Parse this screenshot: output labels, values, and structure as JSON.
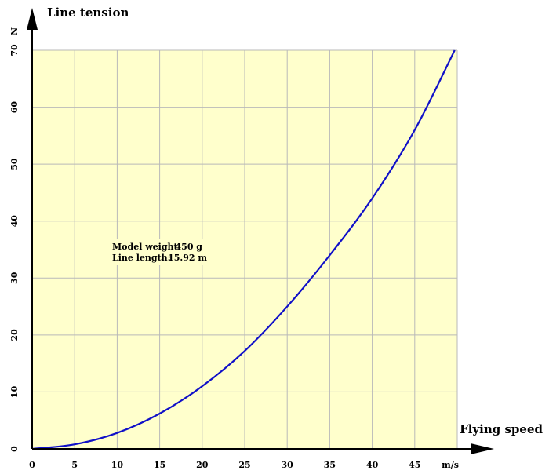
{
  "chart_data": {
    "type": "line",
    "title": "",
    "ylabel": "Line tension",
    "xlabel": "Flying speed",
    "y_unit": "N",
    "x_unit": "m/s",
    "xlim": [
      0,
      50
    ],
    "ylim": [
      0,
      70
    ],
    "x_ticks": [
      0,
      5,
      10,
      15,
      20,
      25,
      30,
      35,
      40,
      45
    ],
    "y_ticks": [
      0,
      10,
      20,
      30,
      40,
      50,
      60,
      70
    ],
    "grid": true,
    "series": [
      {
        "x": [
          0,
          5,
          10,
          15,
          20,
          25,
          30,
          35,
          40,
          45,
          49.7
        ],
        "values": [
          0,
          0.8,
          2.8,
          6.2,
          11.0,
          17.2,
          25.0,
          34.0,
          44.0,
          56.0,
          70.0
        ],
        "color": "#1010c8"
      }
    ],
    "annotation": {
      "lines": [
        {
          "label": "Model weight:",
          "value": "450 g"
        },
        {
          "label": "Line length:",
          "value": "15.92 m"
        }
      ]
    },
    "colors": {
      "plot_background": "#ffffcc",
      "grid": "#b9b9b9",
      "axis": "#000000",
      "line": "#1010c8"
    }
  }
}
